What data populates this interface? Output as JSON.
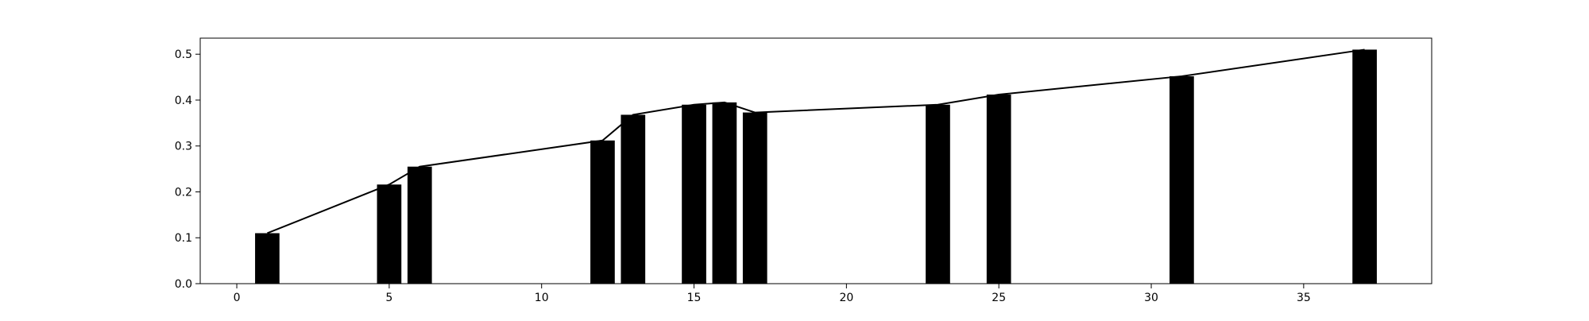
{
  "chart_data": {
    "type": "bar",
    "title": "",
    "xlabel": "",
    "ylabel": "",
    "xlim": [
      -1.2,
      39.2
    ],
    "ylim": [
      0,
      0.535
    ],
    "xticks": [
      0,
      5,
      10,
      15,
      20,
      25,
      30,
      35
    ],
    "yticks": [
      0.0,
      0.1,
      0.2,
      0.3,
      0.4,
      0.5
    ],
    "xtick_labels": [
      "0",
      "5",
      "10",
      "15",
      "20",
      "25",
      "30",
      "35"
    ],
    "ytick_labels": [
      "0.0",
      "0.1",
      "0.2",
      "0.3",
      "0.4",
      "0.5"
    ],
    "grid": false,
    "bar_width": 0.8,
    "x": [
      1,
      5,
      6,
      12,
      13,
      15,
      16,
      17,
      23,
      25,
      31,
      37
    ],
    "values": [
      0.11,
      0.216,
      0.255,
      0.312,
      0.368,
      0.39,
      0.395,
      0.373,
      0.39,
      0.412,
      0.452,
      0.51
    ],
    "bar_color": "#000000",
    "line": {
      "x": [
        1,
        5,
        6,
        12,
        13,
        15,
        16,
        17,
        23,
        25,
        31,
        37
      ],
      "y": [
        0.11,
        0.216,
        0.255,
        0.312,
        0.368,
        0.39,
        0.395,
        0.373,
        0.39,
        0.412,
        0.452,
        0.51
      ],
      "color": "#000000"
    }
  }
}
